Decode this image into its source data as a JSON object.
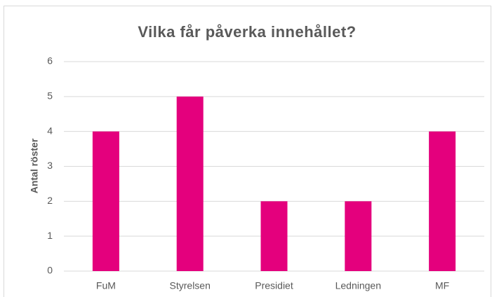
{
  "chart_data": {
    "type": "bar",
    "title": "Vilka får påverka innehållet?",
    "y_label": "Antal röster",
    "categories": [
      "FuM",
      "Styrelsen",
      "Presidiet",
      "Ledningen",
      "MF"
    ],
    "values": [
      4,
      5,
      2,
      2,
      4
    ],
    "color": "#e4007d",
    "ylim": [
      0,
      6
    ],
    "yticks": [
      0,
      1,
      2,
      3,
      4,
      5,
      6
    ],
    "grid": true
  }
}
